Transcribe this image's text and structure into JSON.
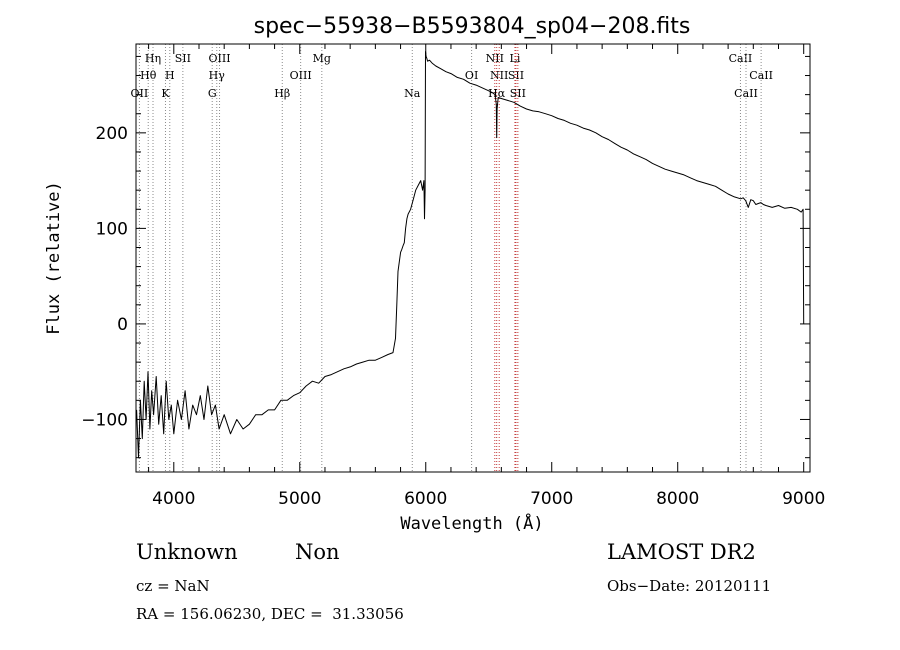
{
  "chart_data": {
    "type": "line",
    "title": "spec−55938−B5593804_sp04−208.fits",
    "xlabel": "Wavelength (Å)",
    "ylabel": "Flux (relative)",
    "xlim": [
      3700,
      9050
    ],
    "ylim": [
      -155,
      293
    ],
    "xticks": [
      {
        "value": 4000,
        "label": "4000"
      },
      {
        "value": 5000,
        "label": "5000"
      },
      {
        "value": 6000,
        "label": "6000"
      },
      {
        "value": 7000,
        "label": "7000"
      },
      {
        "value": 8000,
        "label": "8000"
      },
      {
        "value": 9000,
        "label": "9000"
      }
    ],
    "yticks": [
      {
        "value": -100,
        "label": "−100"
      },
      {
        "value": 0,
        "label": "0"
      },
      {
        "value": 100,
        "label": "100"
      },
      {
        "value": 200,
        "label": "200"
      }
    ],
    "series": [
      {
        "color": "#000000",
        "x": [
          3705,
          3720,
          3735,
          3750,
          3765,
          3780,
          3795,
          3810,
          3825,
          3840,
          3860,
          3880,
          3900,
          3920,
          3940,
          3960,
          3980,
          4000,
          4030,
          4060,
          4090,
          4120,
          4150,
          4180,
          4210,
          4240,
          4270,
          4300,
          4330,
          4360,
          4400,
          4450,
          4500,
          4550,
          4600,
          4650,
          4700,
          4750,
          4800,
          4850,
          4900,
          4950,
          5000,
          5050,
          5100,
          5150,
          5200,
          5250,
          5300,
          5350,
          5400,
          5450,
          5500,
          5550,
          5600,
          5650,
          5700,
          5740,
          5760,
          5770,
          5780,
          5790,
          5800,
          5810,
          5820,
          5830,
          5840,
          5850,
          5860,
          5880,
          5900,
          5920,
          5940,
          5960,
          5975,
          5985,
          5990,
          5995,
          5998,
          6000,
          6003,
          6008,
          6015,
          6030,
          6050,
          6080,
          6120,
          6160,
          6200,
          6250,
          6300,
          6350,
          6400,
          6450,
          6500,
          6530,
          6550,
          6560,
          6563,
          6566,
          6575,
          6600,
          6650,
          6700,
          6750,
          6800,
          6850,
          6900,
          6950,
          7000,
          7050,
          7100,
          7150,
          7200,
          7250,
          7300,
          7350,
          7400,
          7450,
          7500,
          7550,
          7600,
          7650,
          7700,
          7750,
          7800,
          7850,
          7900,
          7950,
          8000,
          8050,
          8100,
          8150,
          8200,
          8250,
          8300,
          8350,
          8400,
          8450,
          8500,
          8520,
          8540,
          8560,
          8580,
          8600,
          8620,
          8640,
          8660,
          8680,
          8700,
          8750,
          8800,
          8850,
          8900,
          8950,
          8980,
          8995,
          9000
        ],
        "values": [
          -90,
          -140,
          -80,
          -120,
          -60,
          -100,
          -50,
          -110,
          -70,
          -95,
          -55,
          -105,
          -75,
          -115,
          -60,
          -100,
          -85,
          -115,
          -80,
          -100,
          -70,
          -110,
          -85,
          -95,
          -75,
          -100,
          -65,
          -95,
          -85,
          -110,
          -95,
          -115,
          -100,
          -110,
          -105,
          -95,
          -95,
          -90,
          -90,
          -80,
          -80,
          -75,
          -72,
          -65,
          -60,
          -62,
          -55,
          -53,
          -50,
          -47,
          -45,
          -42,
          -40,
          -38,
          -38,
          -35,
          -32,
          -30,
          -15,
          20,
          55,
          65,
          75,
          78,
          82,
          85,
          100,
          110,
          115,
          120,
          130,
          140,
          145,
          150,
          140,
          150,
          110,
          140,
          285,
          283,
          280,
          278,
          275,
          276,
          273,
          270,
          267,
          264,
          262,
          258,
          256,
          252,
          250,
          247,
          244,
          242,
          240,
          230,
          195,
          225,
          237,
          236,
          234,
          232,
          228,
          225,
          223,
          222,
          220,
          218,
          215,
          213,
          210,
          208,
          205,
          203,
          200,
          196,
          193,
          189,
          185,
          182,
          178,
          175,
          172,
          168,
          165,
          162,
          160,
          158,
          156,
          153,
          150,
          148,
          146,
          144,
          140,
          136,
          133,
          131,
          132,
          129,
          122,
          130,
          129,
          125,
          126,
          127,
          125,
          124,
          122,
          124,
          121,
          122,
          120,
          117,
          120,
          0
        ]
      }
    ],
    "lines": [
      {
        "label": "Hη",
        "row": 0,
        "x": 3835,
        "color": "gray"
      },
      {
        "label": "Hθ",
        "row": 1,
        "x": 3797,
        "color": "gray"
      },
      {
        "label": "OII",
        "row": 2,
        "x": 3727,
        "color": "gray"
      },
      {
        "label": "H",
        "row": 1,
        "x": 3968,
        "color": "gray"
      },
      {
        "label": "K",
        "row": 2,
        "x": 3934,
        "color": "gray"
      },
      {
        "label": "SII",
        "row": 0,
        "x": 4072,
        "color": "gray"
      },
      {
        "label": "OIII",
        "row": 0,
        "x": 4363,
        "color": "gray"
      },
      {
        "label": "Hγ",
        "row": 1,
        "x": 4341,
        "color": "gray"
      },
      {
        "label": "G",
        "row": 2,
        "x": 4305,
        "color": "gray"
      },
      {
        "label": "Hβ",
        "row": 2,
        "x": 4861,
        "color": "gray"
      },
      {
        "label": "OIII",
        "row": 1,
        "x": 5007,
        "color": "gray"
      },
      {
        "label": "Mg",
        "row": 0,
        "x": 5175,
        "color": "gray"
      },
      {
        "label": "Na",
        "row": 2,
        "x": 5893,
        "color": "gray"
      },
      {
        "label": "OI",
        "row": 1,
        "x": 6364,
        "color": "gray"
      },
      {
        "label": "NII",
        "row": 0,
        "x": 6548,
        "color": "red"
      },
      {
        "label": "NII",
        "row": 1,
        "x": 6583,
        "color": "red"
      },
      {
        "label": "Hα",
        "row": 2,
        "x": 6563,
        "color": "red"
      },
      {
        "label": "Li",
        "row": 0,
        "x": 6708,
        "color": "red"
      },
      {
        "label": "SII",
        "row": 1,
        "x": 6716,
        "color": "red"
      },
      {
        "label": "SII",
        "row": 2,
        "x": 6731,
        "color": "red"
      },
      {
        "label": "CaII",
        "row": 0,
        "x": 8498,
        "color": "gray"
      },
      {
        "label": "CaII",
        "row": 1,
        "x": 8662,
        "color": "gray"
      },
      {
        "label": "CaII",
        "row": 2,
        "x": 8542,
        "color": "gray"
      }
    ]
  },
  "info": {
    "class": "Unknown",
    "subclass": "Non",
    "survey": "LAMOST DR2",
    "cz": "cz = NaN",
    "obs_date": "Obs−Date: 20120111",
    "coords": "RA = 156.06230, DEC =  31.33056"
  }
}
